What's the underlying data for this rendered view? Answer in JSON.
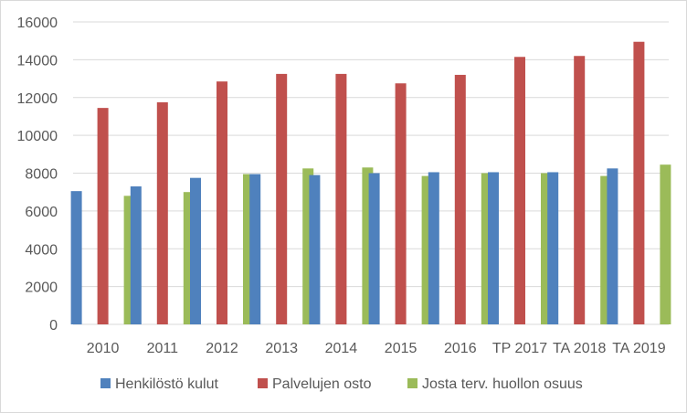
{
  "chart_data": {
    "type": "bar",
    "categories": [
      "2010",
      "2011",
      "2012",
      "2013",
      "2014",
      "2015",
      "2016",
      "TP 2017",
      "TA 2018",
      "TA 2019"
    ],
    "series": [
      {
        "name": "Henkilöstö kulut",
        "color": "#4F81BD",
        "values": [
          7050,
          7300,
          7750,
          7950,
          7900,
          8000,
          8050,
          8050,
          8050,
          8250
        ]
      },
      {
        "name": "Palvelujen  osto",
        "color": "#C0504D",
        "values": [
          11450,
          11750,
          12850,
          13250,
          13250,
          12750,
          13200,
          14150,
          14200,
          14950
        ]
      },
      {
        "name": "Josta terv. huollon osuus",
        "color": "#9BBB59",
        "values": [
          6800,
          7000,
          7950,
          8250,
          8300,
          7850,
          8000,
          8000,
          7850,
          8450
        ]
      }
    ],
    "yticks": [
      "0",
      "2000",
      "4000",
      "6000",
      "8000",
      "10000",
      "12000",
      "14000",
      "16000"
    ],
    "ylim": [
      0,
      16000
    ],
    "grid": true,
    "legend": "bottom",
    "title": "",
    "xlabel": "",
    "ylabel": ""
  }
}
